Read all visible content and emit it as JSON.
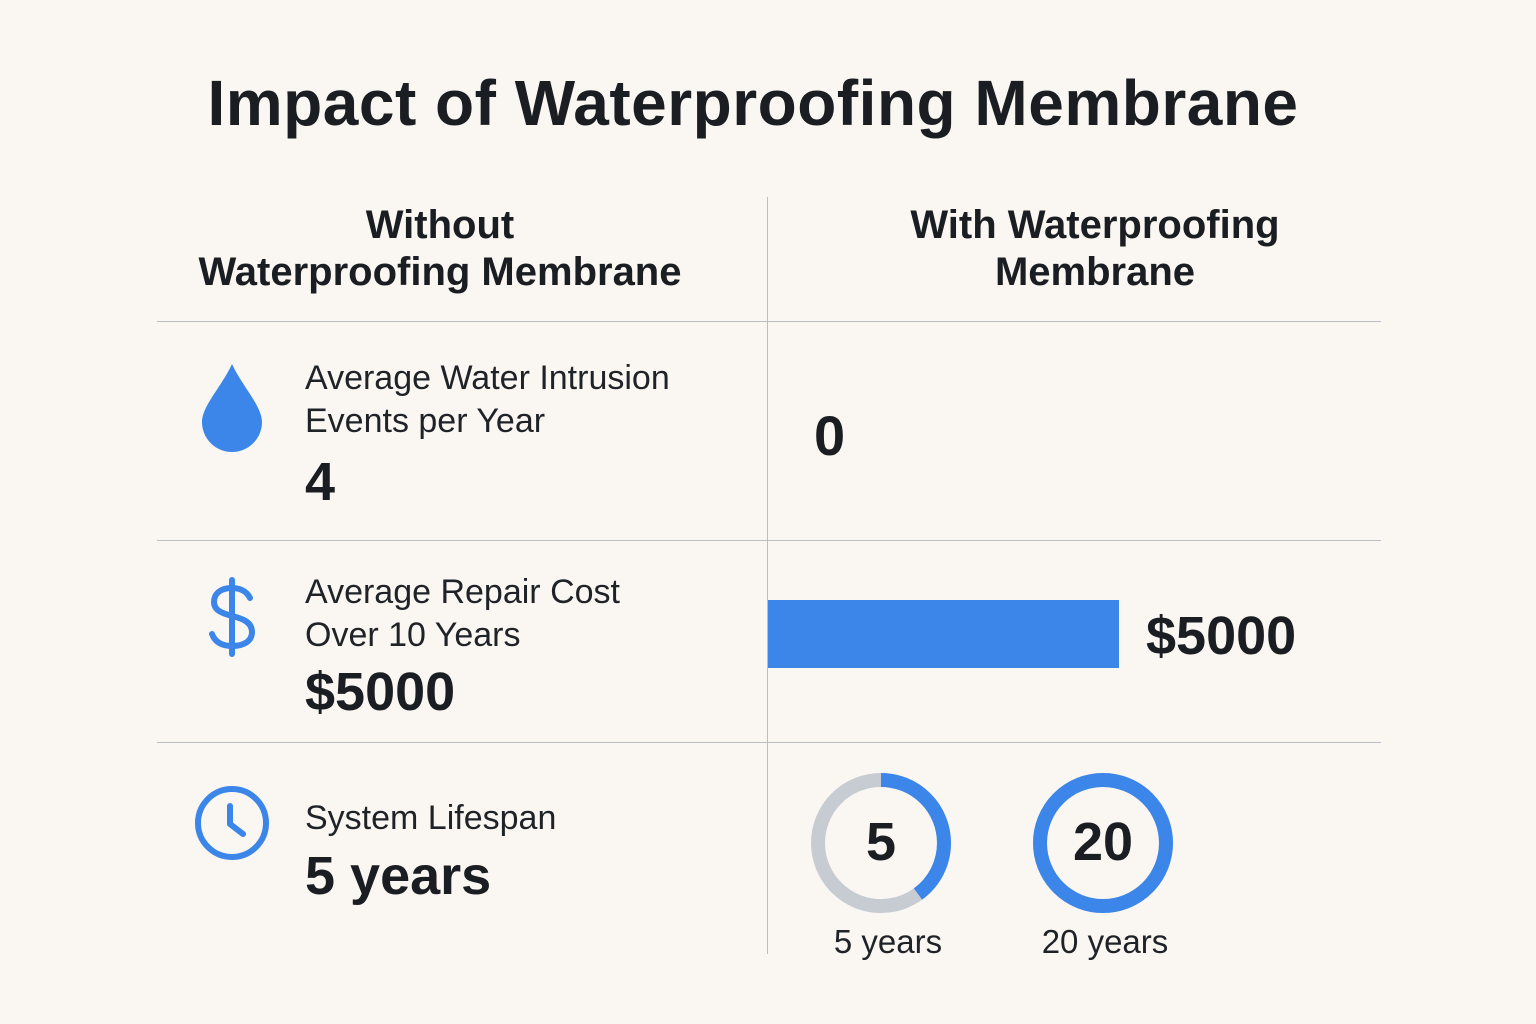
{
  "title": "Impact of Waterproofing Membrane",
  "columns": {
    "without": [
      "Without",
      "Waterproofing Membrane"
    ],
    "with": [
      "With Waterproofing",
      "Membrane"
    ]
  },
  "rows": [
    {
      "icon": "water-drop-icon",
      "label": [
        "Average Water Intrusion",
        "Events per Year"
      ],
      "without_value": "4",
      "with_value": "0"
    },
    {
      "icon": "dollar-icon",
      "label": [
        "Average Repair Cost",
        "Over 10 Years"
      ],
      "without_value": "$5000",
      "with_value": "$5000",
      "with_bar_fraction": 1.0
    },
    {
      "icon": "clock-icon",
      "label": [
        "System Lifespan"
      ],
      "without_value": "5 years",
      "with_gauges": [
        {
          "value": "5",
          "caption": "5 years",
          "fraction": 0.4
        },
        {
          "value": "20",
          "caption": "20 years",
          "fraction": 1.0
        }
      ]
    }
  ],
  "colors": {
    "accent": "#3b86e8",
    "track": "#c7ccd2",
    "background": "#faf7f3",
    "text": "#1a1d21"
  }
}
